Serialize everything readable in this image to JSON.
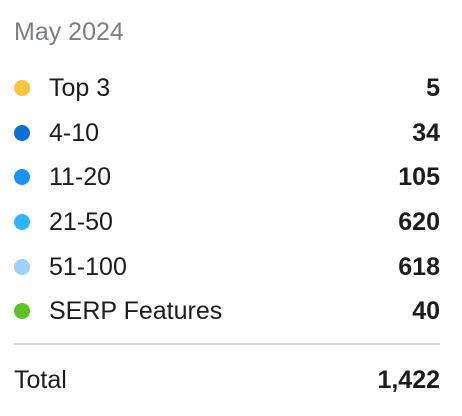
{
  "header": {
    "title": "May 2024"
  },
  "rows": [
    {
      "label": "Top 3",
      "value": "5",
      "color": "#FFC53D"
    },
    {
      "label": "4-10",
      "value": "34",
      "color": "#0B6FD4"
    },
    {
      "label": "11-20",
      "value": "105",
      "color": "#1890FF"
    },
    {
      "label": "21-50",
      "value": "620",
      "color": "#30B4FF"
    },
    {
      "label": "51-100",
      "value": "618",
      "color": "#9DD1FF"
    },
    {
      "label": "SERP Features",
      "value": "40",
      "color": "#5FC128"
    }
  ],
  "total": {
    "label": "Total",
    "value": "1,422"
  }
}
